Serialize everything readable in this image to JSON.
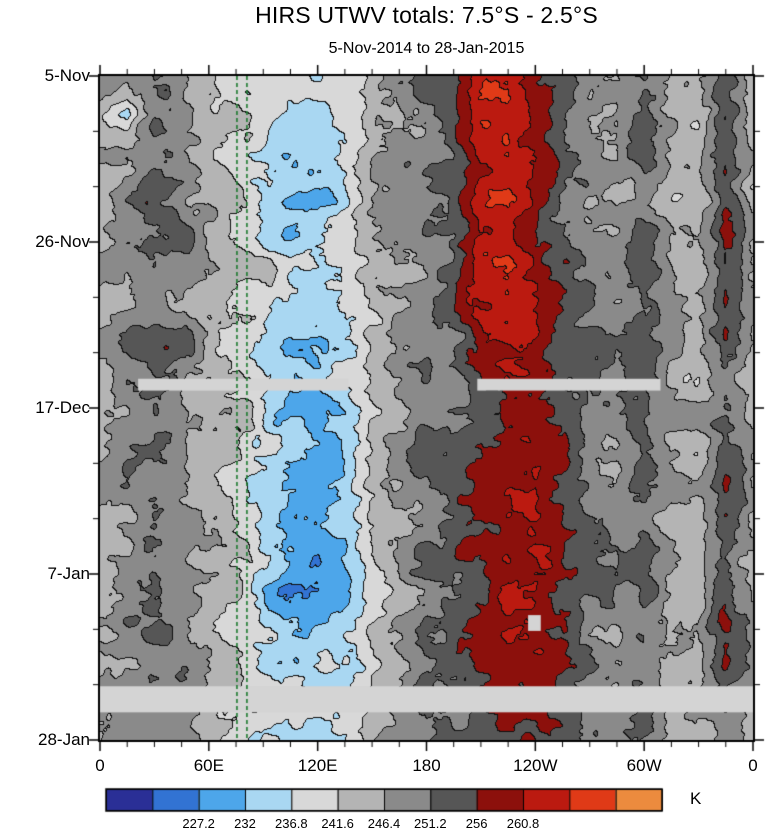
{
  "chart_data": {
    "type": "heatmap",
    "title": "HIRS UTWV totals: 7.5°S - 2.5°S",
    "subtitle": "5-Nov-2014 to 28-Jan-2015",
    "x_axis": {
      "range_deg": [
        0,
        360
      ],
      "minor_step_deg": 15,
      "major_ticks": [
        {
          "deg": 0,
          "label": "0"
        },
        {
          "deg": 60,
          "label": "60E"
        },
        {
          "deg": 120,
          "label": "120E"
        },
        {
          "deg": 180,
          "label": "180"
        },
        {
          "deg": 240,
          "label": "120W"
        },
        {
          "deg": 300,
          "label": "60W"
        },
        {
          "deg": 360,
          "label": "0"
        }
      ]
    },
    "y_axis": {
      "range_days": [
        0,
        84
      ],
      "start_date": "5-Nov-2014",
      "end_date": "28-Jan-2015",
      "minor_step_days": 7,
      "major_ticks": [
        {
          "day": 0,
          "label": "5-Nov"
        },
        {
          "day": 21,
          "label": "26-Nov"
        },
        {
          "day": 42,
          "label": "17-Dec"
        },
        {
          "day": 63,
          "label": "7-Jan"
        },
        {
          "day": 84,
          "label": "28-Jan"
        }
      ]
    },
    "colorbar": {
      "unit": "K",
      "levels": [
        222.4,
        227.2,
        232,
        236.8,
        241.6,
        246.4,
        251.2,
        256,
        260.8,
        265.6,
        270.4
      ],
      "tick_labels": [
        "227.2",
        "232",
        "236.8",
        "241.6",
        "246.4",
        "251.2",
        "256",
        "260.8"
      ],
      "colors": [
        "#2a2f96",
        "#3273d3",
        "#4da6ea",
        "#a9d7f2",
        "#d8d8d8",
        "#b4b4b4",
        "#8a8a8a",
        "#565656",
        "#8c100c",
        "#bb1a10",
        "#e03a17",
        "#ec8b3e"
      ]
    },
    "field": {
      "units": "K",
      "lon_step_deg": 15,
      "time_step_days": 4.94,
      "values": [
        [
          246,
          249,
          252,
          250,
          245,
          242,
          239,
          237,
          235,
          238,
          243,
          247,
          250,
          252,
          261,
          264,
          258,
          254,
          250,
          248,
          252,
          246,
          244,
          256,
          246
        ],
        [
          246,
          233,
          250,
          250,
          245,
          242,
          239,
          236,
          234,
          237,
          243,
          247,
          250,
          252,
          262,
          263,
          258,
          254,
          250,
          248,
          252,
          246,
          244,
          257,
          246
        ],
        [
          246,
          248,
          252,
          250,
          245,
          242,
          239,
          235,
          234,
          237,
          243,
          247,
          250,
          253,
          262,
          264,
          259,
          254,
          250,
          248,
          252,
          246,
          244,
          256,
          246
        ],
        [
          246,
          249,
          252,
          250,
          245,
          241,
          237,
          235,
          233,
          237,
          243,
          247,
          250,
          253,
          263,
          266,
          260,
          254,
          250,
          248,
          252,
          246,
          244,
          257,
          246
        ],
        [
          246,
          249,
          252,
          250,
          245,
          242,
          238,
          235,
          234,
          237,
          243,
          247,
          250,
          252,
          262,
          265,
          259,
          254,
          250,
          248,
          252,
          246,
          244,
          257,
          246
        ],
        [
          246,
          249,
          252,
          250,
          245,
          242,
          239,
          235,
          234,
          236,
          243,
          247,
          250,
          252,
          262,
          267,
          259,
          254,
          250,
          248,
          252,
          246,
          244,
          256,
          246
        ],
        [
          246,
          249,
          252,
          250,
          245,
          242,
          239,
          234,
          233,
          237,
          243,
          247,
          250,
          252,
          261,
          264,
          260,
          254,
          250,
          248,
          252,
          246,
          244,
          255,
          246
        ],
        [
          246,
          249,
          252,
          250,
          245,
          242,
          239,
          234,
          233,
          236,
          243,
          247,
          250,
          252,
          259,
          261,
          259,
          254,
          250,
          248,
          252,
          246,
          244,
          254,
          246
        ],
        [
          246,
          249,
          252,
          250,
          245,
          242,
          238,
          233,
          232,
          236,
          243,
          247,
          250,
          251,
          256,
          257,
          256,
          254,
          250,
          248,
          252,
          246,
          244,
          252,
          246
        ],
        [
          246,
          249,
          251,
          250,
          245,
          242,
          237,
          233,
          232,
          235,
          242,
          247,
          250,
          251,
          255,
          257,
          257,
          254,
          250,
          248,
          252,
          246,
          244,
          252,
          246
        ],
        [
          246,
          249,
          251,
          250,
          245,
          242,
          237,
          232,
          231,
          234,
          242,
          247,
          250,
          251,
          255,
          258,
          259,
          255,
          250,
          248,
          252,
          246,
          244,
          253,
          246
        ],
        [
          246,
          249,
          252,
          250,
          245,
          242,
          236,
          231,
          229,
          233,
          242,
          247,
          250,
          252,
          256,
          260,
          261,
          255,
          250,
          248,
          252,
          246,
          244,
          254,
          246
        ],
        [
          246,
          249,
          252,
          250,
          245,
          242,
          235,
          230,
          228,
          232,
          241,
          247,
          250,
          252,
          256,
          261,
          262,
          255,
          250,
          248,
          252,
          246,
          244,
          254,
          246
        ],
        [
          246,
          249,
          252,
          250,
          245,
          241,
          235,
          229,
          228,
          231,
          241,
          246,
          250,
          252,
          256,
          264,
          261,
          255,
          250,
          248,
          252,
          246,
          244,
          255,
          246
        ],
        [
          246,
          249,
          252,
          250,
          245,
          241,
          236,
          230,
          229,
          232,
          241,
          246,
          250,
          252,
          256,
          263,
          260,
          255,
          250,
          248,
          252,
          246,
          244,
          255,
          246
        ],
        [
          246,
          249,
          252,
          250,
          245,
          242,
          237,
          233,
          232,
          235,
          242,
          246,
          250,
          252,
          255,
          260,
          258,
          254,
          250,
          248,
          252,
          246,
          244,
          254,
          246
        ],
        [
          246,
          249,
          252,
          250,
          245,
          242,
          238,
          236,
          235,
          237,
          243,
          246,
          250,
          252,
          255,
          258,
          257,
          254,
          250,
          248,
          252,
          246,
          244,
          253,
          246
        ],
        [
          246,
          249,
          252,
          250,
          245,
          242,
          239,
          237,
          236,
          238,
          243,
          247,
          250,
          252,
          255,
          258,
          257,
          254,
          250,
          248,
          252,
          246,
          244,
          252,
          246
        ]
      ]
    },
    "annotations": {
      "dashed_lines_lon_deg": [
        75.5,
        81
      ],
      "dashed_line_color": "#1b7a2e"
    },
    "missing_data_color": "#d4d4d4",
    "missing_data_regions": [
      {
        "day_start": 38.3,
        "day_end": 39.8,
        "lon_start": 21,
        "lon_end": 137
      },
      {
        "day_start": 38.3,
        "day_end": 39.8,
        "lon_start": 208,
        "lon_end": 309
      },
      {
        "day_start": 77.2,
        "day_end": 80.5,
        "lon_start": 0,
        "lon_end": 360
      },
      {
        "day_start": 68.2,
        "day_end": 70.2,
        "lon_start": 236,
        "lon_end": 243
      }
    ]
  }
}
